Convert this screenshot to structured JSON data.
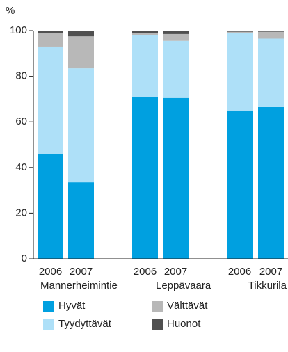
{
  "chart_data": {
    "type": "stacked_bar",
    "y_label": "%",
    "categories": [
      "2006",
      "2007",
      "2006",
      "2007",
      "2006",
      "2007"
    ],
    "groups": [
      "Mannerheimintie",
      "Leppävaara",
      "Tikkurila"
    ],
    "series": [
      {
        "name": "Hyvät",
        "color": "#00a0e0",
        "values": [
          46,
          33.5,
          71,
          70.5,
          65,
          66.5
        ]
      },
      {
        "name": "Tyydyttävät",
        "color": "#aee0f8",
        "values": [
          47,
          50,
          27,
          25,
          34,
          30
        ]
      },
      {
        "name": "Välttävät",
        "color": "#b8b8b8",
        "values": [
          6,
          14,
          1,
          3,
          0.5,
          3
        ]
      },
      {
        "name": "Huonot",
        "color": "#505050",
        "values": [
          1,
          2.5,
          1,
          1.5,
          0.5,
          0.5
        ]
      }
    ],
    "ylim": [
      0,
      100
    ],
    "yticks": [
      0,
      20,
      40,
      60,
      80,
      100
    ]
  }
}
